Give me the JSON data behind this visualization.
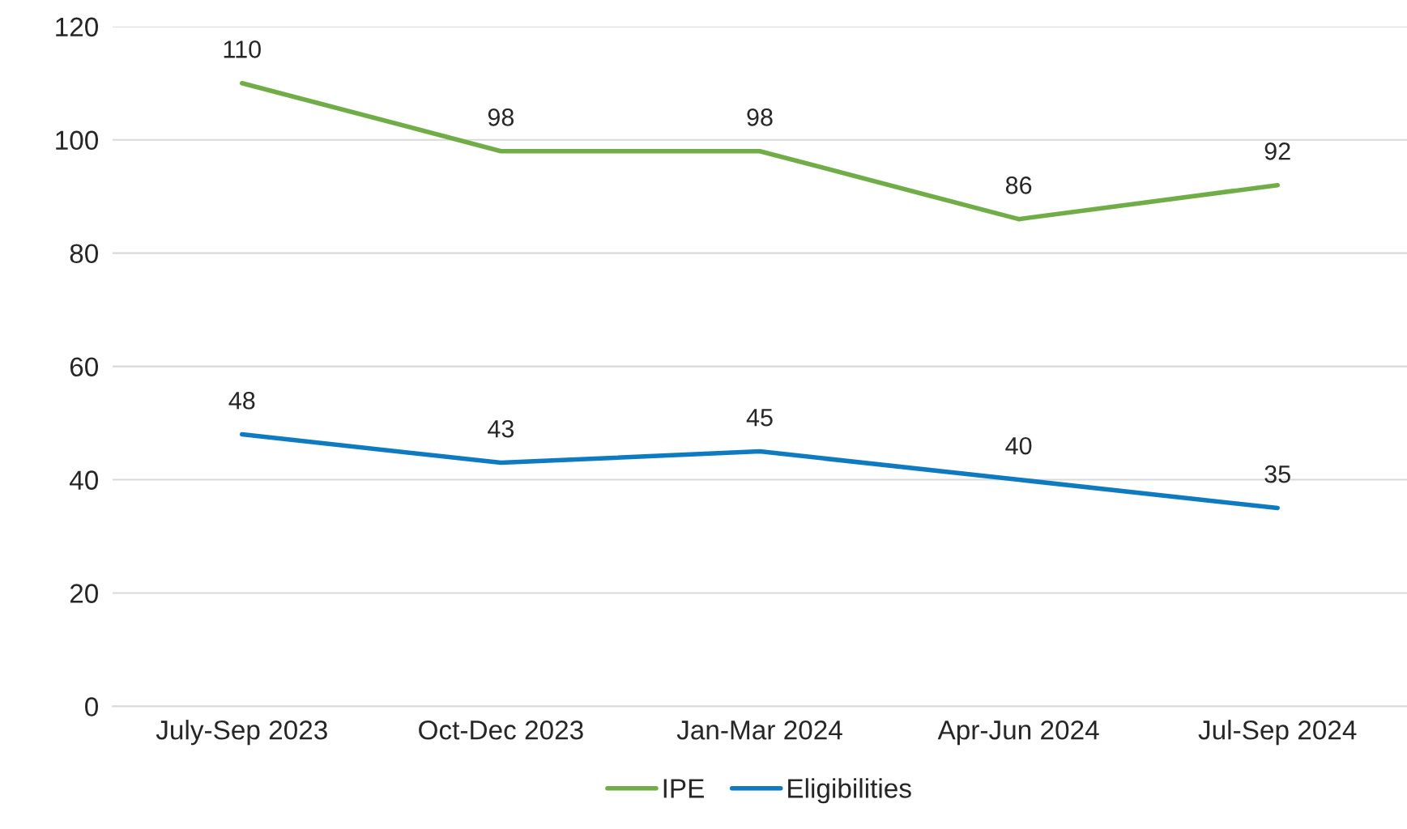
{
  "chart_data": {
    "type": "line",
    "categories": [
      "July-Sep 2023",
      "Oct-Dec 2023",
      "Jan-Mar 2024",
      "Apr-Jun 2024",
      "Jul-Sep 2024"
    ],
    "series": [
      {
        "name": "IPE",
        "color": "#70ad47",
        "values": [
          110,
          98,
          98,
          86,
          92
        ]
      },
      {
        "name": "Eligibilities",
        "color": "#0e7bc0",
        "values": [
          48,
          43,
          45,
          40,
          35
        ]
      }
    ],
    "ylim": [
      0,
      120
    ],
    "yticks": [
      0,
      20,
      40,
      60,
      80,
      100,
      120
    ],
    "grid": "y",
    "legend": "bottom",
    "data_labels": true,
    "marker": "none",
    "line_style": "solid"
  }
}
